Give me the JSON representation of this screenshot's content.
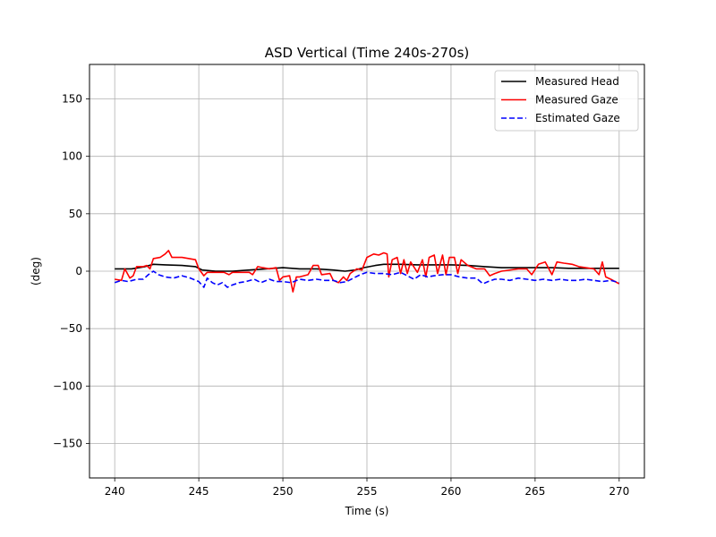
{
  "chart_data": {
    "type": "line",
    "title": "ASD Vertical (Time 240s-270s)",
    "xlabel": "Time (s)",
    "ylabel": "(deg)",
    "xlim": [
      238.5,
      271.5
    ],
    "ylim": [
      -180,
      180
    ],
    "xticks": [
      240,
      245,
      250,
      255,
      260,
      265,
      270
    ],
    "yticks": [
      -150,
      -100,
      -50,
      0,
      50,
      100,
      150
    ],
    "ytick_labels": [
      "−150",
      "−100",
      "−50",
      "0",
      "50",
      "100",
      "150"
    ],
    "grid": true,
    "legend_position": "top-right",
    "series": [
      {
        "name": "Measured Head",
        "color": "#000000",
        "dash": "solid",
        "points": [
          [
            240,
            2
          ],
          [
            241,
            2
          ],
          [
            241.8,
            4
          ],
          [
            242.3,
            6
          ],
          [
            243,
            5.5
          ],
          [
            244,
            5
          ],
          [
            244.8,
            4
          ],
          [
            245.2,
            1
          ],
          [
            246,
            0
          ],
          [
            247,
            0
          ],
          [
            248,
            1
          ],
          [
            249,
            2
          ],
          [
            250,
            3
          ],
          [
            251,
            2
          ],
          [
            252,
            2
          ],
          [
            253,
            1
          ],
          [
            253.7,
            0
          ],
          [
            254.3,
            1
          ],
          [
            254.8,
            3
          ],
          [
            255.5,
            5
          ],
          [
            256,
            6
          ],
          [
            257,
            6
          ],
          [
            258,
            5.5
          ],
          [
            259,
            5.5
          ],
          [
            260,
            5.5
          ],
          [
            261,
            5
          ],
          [
            262,
            4
          ],
          [
            263,
            3
          ],
          [
            264,
            3
          ],
          [
            265,
            3
          ],
          [
            266,
            3
          ],
          [
            267,
            2.5
          ],
          [
            268,
            2.5
          ],
          [
            269,
            2.5
          ],
          [
            270,
            2.5
          ]
        ]
      },
      {
        "name": "Measured Gaze",
        "color": "#ff0000",
        "dash": "solid",
        "points": [
          [
            240,
            -7
          ],
          [
            240.4,
            -8
          ],
          [
            240.6,
            2
          ],
          [
            240.9,
            -6
          ],
          [
            241.1,
            -4
          ],
          [
            241.3,
            4
          ],
          [
            241.7,
            4
          ],
          [
            241.9,
            5
          ],
          [
            242.1,
            2
          ],
          [
            242.3,
            11
          ],
          [
            242.7,
            12
          ],
          [
            243,
            15
          ],
          [
            243.2,
            18
          ],
          [
            243.4,
            12
          ],
          [
            244,
            12
          ],
          [
            244.8,
            10
          ],
          [
            245,
            2
          ],
          [
            245.3,
            -4
          ],
          [
            245.5,
            -1
          ],
          [
            246,
            -1
          ],
          [
            246.5,
            -1
          ],
          [
            246.8,
            -3
          ],
          [
            247,
            -1
          ],
          [
            248,
            -1
          ],
          [
            248.2,
            -3
          ],
          [
            248.5,
            4
          ],
          [
            248.8,
            3
          ],
          [
            249.2,
            2
          ],
          [
            249.6,
            3
          ],
          [
            249.8,
            -8
          ],
          [
            250,
            -5
          ],
          [
            250.4,
            -4
          ],
          [
            250.6,
            -18
          ],
          [
            250.8,
            -5
          ],
          [
            251,
            -5
          ],
          [
            251.5,
            -3
          ],
          [
            251.8,
            5
          ],
          [
            252.1,
            5
          ],
          [
            252.3,
            -3
          ],
          [
            252.8,
            -2
          ],
          [
            253,
            -8
          ],
          [
            253.3,
            -10
          ],
          [
            253.6,
            -5
          ],
          [
            253.8,
            -8
          ],
          [
            254,
            -2
          ],
          [
            254.4,
            2
          ],
          [
            254.7,
            1
          ],
          [
            255,
            12
          ],
          [
            255.4,
            15
          ],
          [
            255.7,
            14
          ],
          [
            256,
            16
          ],
          [
            256.2,
            15
          ],
          [
            256.3,
            -5
          ],
          [
            256.5,
            10
          ],
          [
            256.8,
            12
          ],
          [
            257,
            -2
          ],
          [
            257.2,
            10
          ],
          [
            257.4,
            -2
          ],
          [
            257.6,
            8
          ],
          [
            258,
            -1
          ],
          [
            258.3,
            10
          ],
          [
            258.5,
            -5
          ],
          [
            258.7,
            12
          ],
          [
            259,
            14
          ],
          [
            259.2,
            -2
          ],
          [
            259.5,
            14
          ],
          [
            259.7,
            -3
          ],
          [
            259.9,
            12
          ],
          [
            260.2,
            12
          ],
          [
            260.4,
            -2
          ],
          [
            260.6,
            10
          ],
          [
            261,
            5
          ],
          [
            261.5,
            2
          ],
          [
            262,
            2
          ],
          [
            262.3,
            -4
          ],
          [
            262.6,
            -2
          ],
          [
            263,
            0
          ],
          [
            264,
            2
          ],
          [
            264.5,
            2
          ],
          [
            264.8,
            -3
          ],
          [
            265.2,
            6
          ],
          [
            265.6,
            8
          ],
          [
            266,
            -3
          ],
          [
            266.3,
            8
          ],
          [
            266.7,
            7
          ],
          [
            267.2,
            6
          ],
          [
            267.6,
            4
          ],
          [
            268,
            3
          ],
          [
            268.5,
            2
          ],
          [
            268.8,
            -3
          ],
          [
            269,
            8
          ],
          [
            269.2,
            -5
          ],
          [
            269.5,
            -7
          ],
          [
            270,
            -11
          ]
        ]
      },
      {
        "name": "Estimated Gaze",
        "color": "#0000ff",
        "dash": "dashed",
        "points": [
          [
            240,
            -10
          ],
          [
            240.4,
            -8
          ],
          [
            240.8,
            -9
          ],
          [
            241.3,
            -7
          ],
          [
            241.7,
            -7
          ],
          [
            242,
            -3
          ],
          [
            242.3,
            0
          ],
          [
            242.6,
            -3
          ],
          [
            243,
            -5
          ],
          [
            243.5,
            -6
          ],
          [
            244,
            -4
          ],
          [
            244.5,
            -6
          ],
          [
            245,
            -9
          ],
          [
            245.3,
            -14
          ],
          [
            245.5,
            -6
          ],
          [
            245.8,
            -10
          ],
          [
            246.1,
            -12
          ],
          [
            246.4,
            -10
          ],
          [
            246.7,
            -14
          ],
          [
            247,
            -12
          ],
          [
            247.4,
            -10
          ],
          [
            247.8,
            -9
          ],
          [
            248.3,
            -7
          ],
          [
            248.7,
            -10
          ],
          [
            249.2,
            -7
          ],
          [
            249.6,
            -9
          ],
          [
            250,
            -9
          ],
          [
            250.5,
            -10
          ],
          [
            251,
            -7
          ],
          [
            251.5,
            -8
          ],
          [
            252,
            -7
          ],
          [
            252.5,
            -8
          ],
          [
            253,
            -8
          ],
          [
            253.4,
            -10
          ],
          [
            253.8,
            -9
          ],
          [
            254.2,
            -6
          ],
          [
            254.6,
            -3
          ],
          [
            255,
            -1
          ],
          [
            255.5,
            -2
          ],
          [
            256,
            -2
          ],
          [
            256.5,
            -3
          ],
          [
            257,
            -1
          ],
          [
            257.4,
            -4
          ],
          [
            257.8,
            -7
          ],
          [
            258.2,
            -3
          ],
          [
            258.6,
            -5
          ],
          [
            259,
            -4
          ],
          [
            259.5,
            -3
          ],
          [
            260,
            -3
          ],
          [
            260.5,
            -5
          ],
          [
            261,
            -6
          ],
          [
            261.5,
            -6
          ],
          [
            261.9,
            -11
          ],
          [
            262.2,
            -9
          ],
          [
            262.6,
            -7
          ],
          [
            263,
            -7
          ],
          [
            263.5,
            -8
          ],
          [
            264,
            -6
          ],
          [
            264.5,
            -7
          ],
          [
            265,
            -8
          ],
          [
            265.5,
            -7
          ],
          [
            266,
            -8
          ],
          [
            266.5,
            -7
          ],
          [
            267,
            -8
          ],
          [
            267.5,
            -8
          ],
          [
            268,
            -7
          ],
          [
            268.5,
            -8
          ],
          [
            269,
            -9
          ],
          [
            269.5,
            -8
          ],
          [
            270,
            -10
          ]
        ]
      }
    ]
  }
}
